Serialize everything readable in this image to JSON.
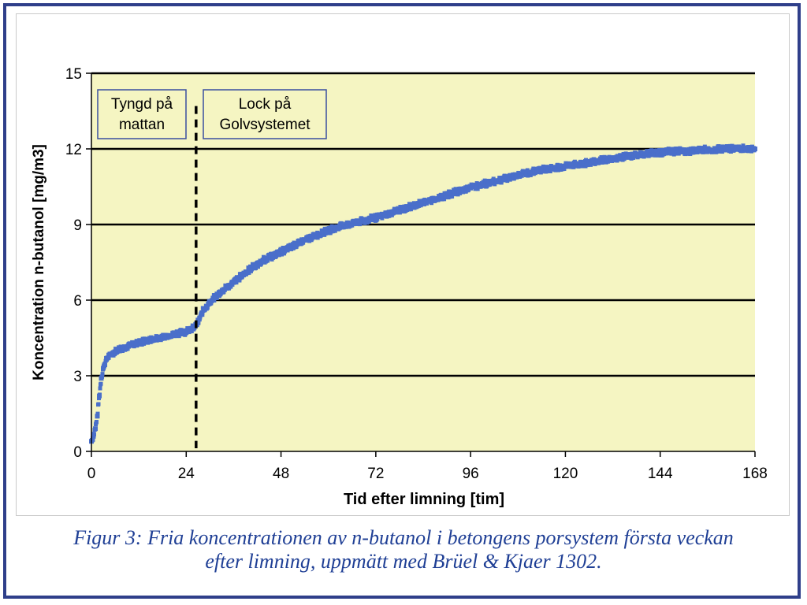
{
  "caption": {
    "line1": "Figur 3: Fria koncentrationen av n-butanol i betongens porsystem första veckan",
    "line2": "efter limning, uppmätt med Brüel & Kjaer 1302."
  },
  "chart_data": {
    "type": "scatter",
    "xlabel": "Tid efter limning [tim]",
    "ylabel": "Koncentration n-butanol [mg/m3]",
    "xlim": [
      0,
      168
    ],
    "ylim": [
      0,
      15
    ],
    "xticks": [
      0,
      24,
      48,
      72,
      96,
      120,
      144,
      168
    ],
    "yticks": [
      0,
      3,
      6,
      9,
      12,
      15
    ],
    "grid": "horizontal",
    "plot_background": "#f5f5c2",
    "marker_color": "#4a6fca",
    "marker": "square",
    "vline": {
      "x": 26.5,
      "style": "dashed"
    },
    "annotations": [
      {
        "text": [
          "Tyngd på",
          "mattan"
        ]
      },
      {
        "text": [
          "Lock på",
          "Golvsystemet"
        ]
      }
    ],
    "series": [
      {
        "x": [
          0,
          0.5,
          1,
          1.5,
          2,
          2.5,
          3,
          4,
          5,
          6,
          8,
          10,
          12,
          16,
          20,
          24,
          26,
          27,
          28,
          30,
          32,
          36,
          40,
          44,
          48,
          52,
          56,
          60,
          64,
          68,
          72,
          78,
          84,
          90,
          96,
          102,
          108,
          114,
          120,
          126,
          132,
          138,
          144,
          150,
          156,
          162,
          168
        ],
        "y": [
          0.4,
          0.6,
          0.9,
          1.4,
          2.2,
          2.9,
          3.3,
          3.7,
          3.85,
          3.95,
          4.1,
          4.2,
          4.3,
          4.45,
          4.6,
          4.75,
          4.9,
          5.1,
          5.5,
          5.9,
          6.2,
          6.7,
          7.2,
          7.6,
          7.9,
          8.2,
          8.5,
          8.75,
          8.95,
          9.1,
          9.25,
          9.55,
          9.85,
          10.15,
          10.45,
          10.7,
          10.95,
          11.15,
          11.3,
          11.45,
          11.6,
          11.75,
          11.85,
          11.9,
          11.95,
          12.0,
          12.0
        ]
      }
    ]
  }
}
